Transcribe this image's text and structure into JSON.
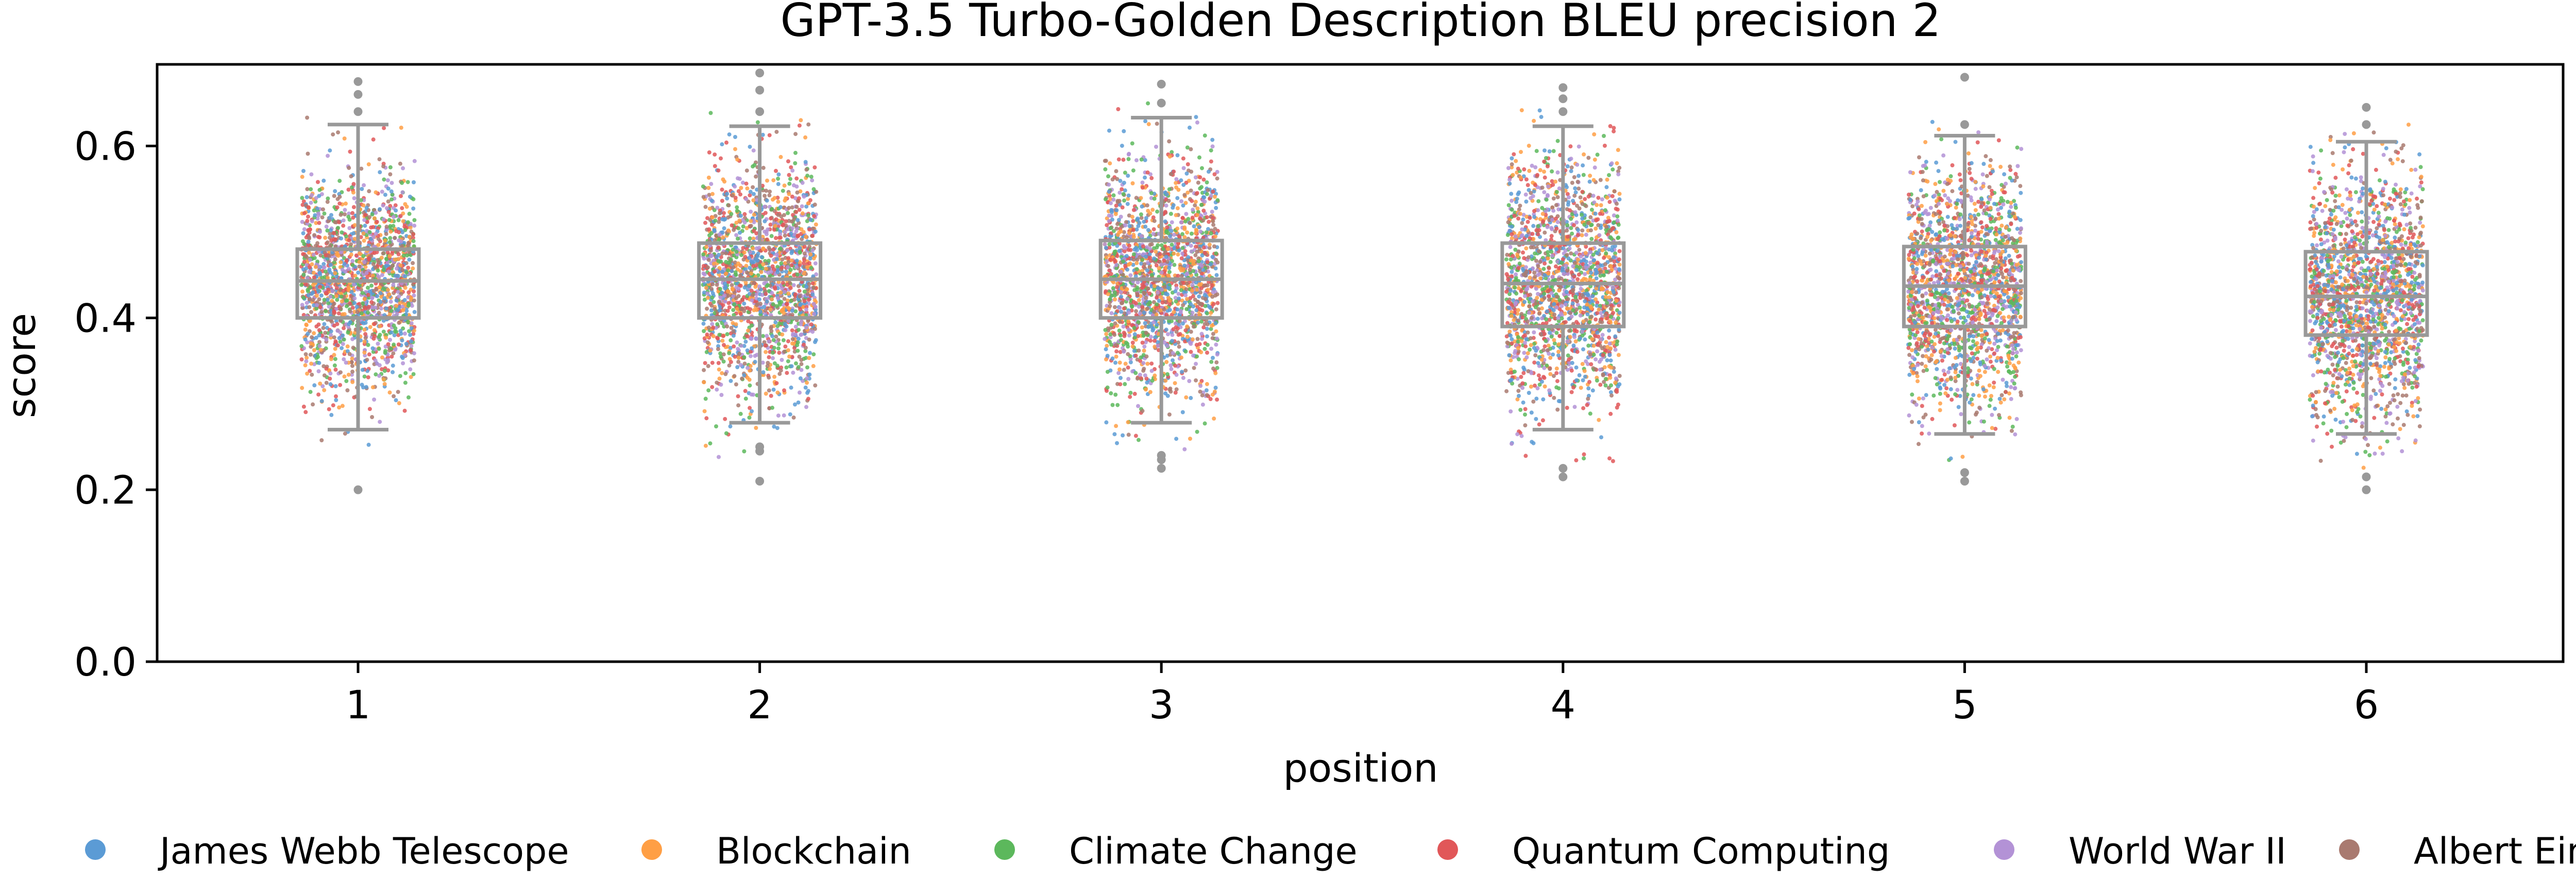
{
  "chart_data": {
    "type": "box-strip",
    "title": "GPT-3.5 Turbo-Golden Description BLEU precision 2",
    "xlabel": "position",
    "ylabel": "score",
    "ylim": [
      0.0,
      0.695
    ],
    "yticks": [
      0.0,
      0.2,
      0.4,
      0.6
    ],
    "ytick_labels": [
      "0.0",
      "0.2",
      "0.4",
      "0.6"
    ],
    "categories": [
      "1",
      "2",
      "3",
      "4",
      "5",
      "6"
    ],
    "legend_placement": "bottom",
    "series": [
      {
        "name": "James Webb Telescope",
        "color": "#5b9bd5"
      },
      {
        "name": "Blockchain",
        "color": "#ff9f45"
      },
      {
        "name": "Climate Change",
        "color": "#5cb85c"
      },
      {
        "name": "Quantum Computing",
        "color": "#e15759"
      },
      {
        "name": "World War II",
        "color": "#b392d6"
      },
      {
        "name": "Albert Einstein",
        "color": "#a97a70"
      }
    ],
    "boxes": [
      {
        "position": "1",
        "whisker_low": 0.27,
        "q1": 0.4,
        "median": 0.443,
        "q3": 0.48,
        "whisker_high": 0.625,
        "outliers": [
          0.2,
          0.64,
          0.66,
          0.675
        ]
      },
      {
        "position": "2",
        "whisker_low": 0.278,
        "q1": 0.4,
        "median": 0.445,
        "q3": 0.487,
        "whisker_high": 0.623,
        "outliers": [
          0.21,
          0.245,
          0.25,
          0.64,
          0.665,
          0.685
        ]
      },
      {
        "position": "3",
        "whisker_low": 0.278,
        "q1": 0.4,
        "median": 0.445,
        "q3": 0.49,
        "whisker_high": 0.633,
        "outliers": [
          0.225,
          0.235,
          0.24,
          0.65,
          0.672
        ]
      },
      {
        "position": "4",
        "whisker_low": 0.27,
        "q1": 0.39,
        "median": 0.44,
        "q3": 0.487,
        "whisker_high": 0.623,
        "outliers": [
          0.215,
          0.225,
          0.64,
          0.655,
          0.668
        ]
      },
      {
        "position": "5",
        "whisker_low": 0.265,
        "q1": 0.39,
        "median": 0.437,
        "q3": 0.483,
        "whisker_high": 0.612,
        "outliers": [
          0.21,
          0.22,
          0.625,
          0.68
        ]
      },
      {
        "position": "6",
        "whisker_low": 0.265,
        "q1": 0.38,
        "median": 0.425,
        "q3": 0.477,
        "whisker_high": 0.605,
        "outliers": [
          0.2,
          0.215,
          0.625,
          0.645
        ]
      }
    ]
  }
}
